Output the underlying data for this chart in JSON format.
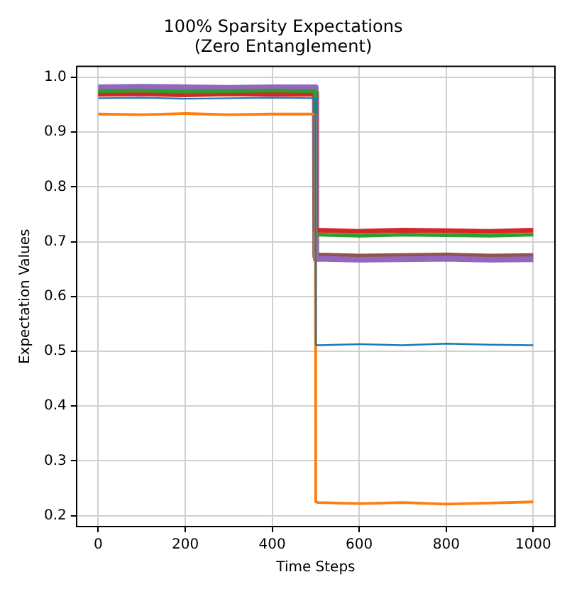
{
  "chart_data": {
    "type": "line",
    "title": "100% Sparsity Expectations\n(Zero Entanglement)",
    "xlabel": "Time Steps",
    "ylabel": "Expectation Values",
    "x": [
      0,
      100,
      200,
      300,
      400,
      499,
      500,
      505,
      600,
      700,
      800,
      900,
      1000
    ],
    "series": [
      {
        "color": "#1f77b4",
        "values": [
          0.962,
          0.963,
          0.961,
          0.962,
          0.963,
          0.962,
          0.512,
          0.511,
          0.513,
          0.511,
          0.514,
          0.512,
          0.511
        ]
      },
      {
        "color": "#ff7f0e",
        "values": [
          0.933,
          0.932,
          0.934,
          0.932,
          0.933,
          0.933,
          0.225,
          0.224,
          0.222,
          0.224,
          0.221,
          0.223,
          0.225
        ]
      },
      {
        "color": "#2ca02c",
        "values": [
          0.975,
          0.976,
          0.974,
          0.975,
          0.976,
          0.975,
          0.712,
          0.713,
          0.711,
          0.713,
          0.712,
          0.711,
          0.713
        ]
      },
      {
        "color": "#d62728",
        "values": [
          0.969,
          0.97,
          0.968,
          0.97,
          0.969,
          0.969,
          0.72,
          0.721,
          0.719,
          0.721,
          0.72,
          0.719,
          0.721
        ]
      },
      {
        "color": "#9467bd",
        "values": [
          0.982,
          0.983,
          0.982,
          0.981,
          0.982,
          0.982,
          0.668,
          0.669,
          0.667,
          0.668,
          0.669,
          0.667,
          0.668
        ]
      },
      {
        "color": "#8c564b",
        "values": [
          0.972,
          0.973,
          0.971,
          0.972,
          0.973,
          0.972,
          0.673,
          0.674,
          0.672,
          0.673,
          0.674,
          0.672,
          0.673
        ]
      }
    ],
    "xlim": [
      -50,
      1050
    ],
    "ylim": [
      0.18,
      1.02
    ],
    "xticks": [
      0,
      200,
      400,
      600,
      800,
      1000
    ],
    "yticks": [
      {
        "value": 0.2,
        "label": "0.2"
      },
      {
        "value": 0.3,
        "label": "0.3"
      },
      {
        "value": 0.4,
        "label": "0.4"
      },
      {
        "value": 0.5,
        "label": "0.5"
      },
      {
        "value": 0.6,
        "label": "0.6"
      },
      {
        "value": 0.7,
        "label": "0.7"
      },
      {
        "value": 0.8,
        "label": "0.8"
      },
      {
        "value": 0.9,
        "label": "0.9"
      },
      {
        "value": 1.0,
        "label": "1.0"
      }
    ],
    "grid": true,
    "marker": "none",
    "line_style": "solid"
  }
}
